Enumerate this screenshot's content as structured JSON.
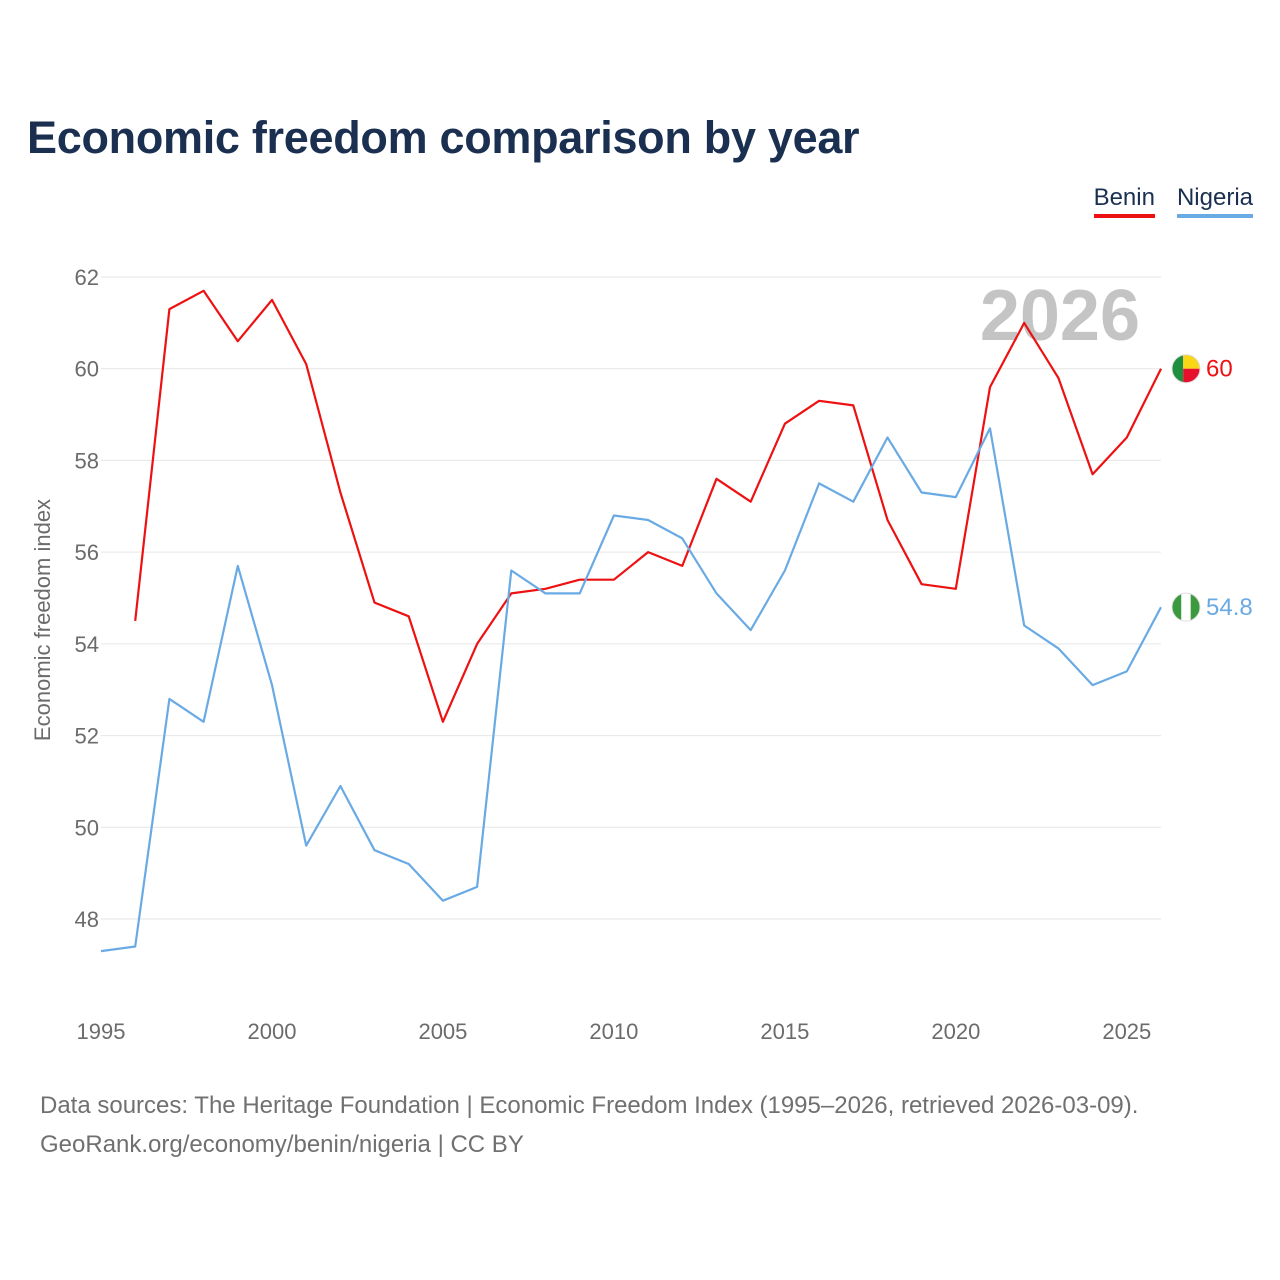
{
  "title": "Economic freedom comparison by year",
  "legend": [
    {
      "name": "Benin",
      "color": "#ee1111"
    },
    {
      "name": "Nigeria",
      "color": "#6aaae4"
    }
  ],
  "chart_data": {
    "type": "line",
    "title": "Economic freedom comparison by year",
    "xlabel": "",
    "ylabel": "Economic freedom index",
    "xlim": [
      1995,
      2026
    ],
    "ylim": [
      46,
      63
    ],
    "x_ticks": [
      1995,
      2000,
      2005,
      2010,
      2015,
      2020,
      2025
    ],
    "y_ticks": [
      48,
      50,
      52,
      54,
      56,
      58,
      60,
      62
    ],
    "year_label": "2026",
    "series": [
      {
        "name": "Benin",
        "color": "#ee1111",
        "x": [
          1996,
          1997,
          1998,
          1999,
          2000,
          2001,
          2002,
          2003,
          2004,
          2005,
          2006,
          2007,
          2008,
          2009,
          2010,
          2011,
          2012,
          2013,
          2014,
          2015,
          2016,
          2017,
          2018,
          2019,
          2020,
          2021,
          2022,
          2023,
          2024,
          2025,
          2026
        ],
        "values": [
          54.5,
          61.3,
          61.7,
          60.6,
          61.5,
          60.1,
          57.3,
          54.9,
          54.6,
          52.3,
          54.0,
          55.1,
          55.2,
          55.4,
          55.4,
          56.0,
          55.7,
          57.6,
          57.1,
          58.8,
          59.3,
          59.2,
          56.7,
          55.3,
          55.2,
          59.6,
          61.0,
          59.8,
          57.7,
          58.5,
          60.0
        ],
        "end_label": "60",
        "flag": "benin-flag"
      },
      {
        "name": "Nigeria",
        "color": "#6aaae4",
        "x": [
          1995,
          1996,
          1997,
          1998,
          1999,
          2000,
          2001,
          2002,
          2003,
          2004,
          2005,
          2006,
          2007,
          2008,
          2009,
          2010,
          2011,
          2012,
          2013,
          2014,
          2015,
          2016,
          2017,
          2018,
          2019,
          2020,
          2021,
          2022,
          2023,
          2024,
          2025,
          2026
        ],
        "values": [
          47.3,
          47.4,
          52.8,
          52.3,
          55.7,
          53.1,
          49.6,
          50.9,
          49.5,
          49.2,
          48.4,
          48.7,
          55.6,
          55.1,
          55.1,
          56.8,
          56.7,
          56.3,
          55.1,
          54.3,
          55.6,
          57.5,
          57.1,
          58.5,
          57.3,
          57.2,
          58.7,
          54.4,
          53.9,
          53.1,
          53.4,
          54.8
        ],
        "end_label": "54.8",
        "flag": "nigeria-flag"
      }
    ]
  },
  "source": {
    "line1": "Data sources: The Heritage Foundation | Economic Freedom Index (1995–2026, retrieved 2026-03-09).",
    "line2": "GeoRank.org/economy/benin/nigeria | CC BY"
  }
}
